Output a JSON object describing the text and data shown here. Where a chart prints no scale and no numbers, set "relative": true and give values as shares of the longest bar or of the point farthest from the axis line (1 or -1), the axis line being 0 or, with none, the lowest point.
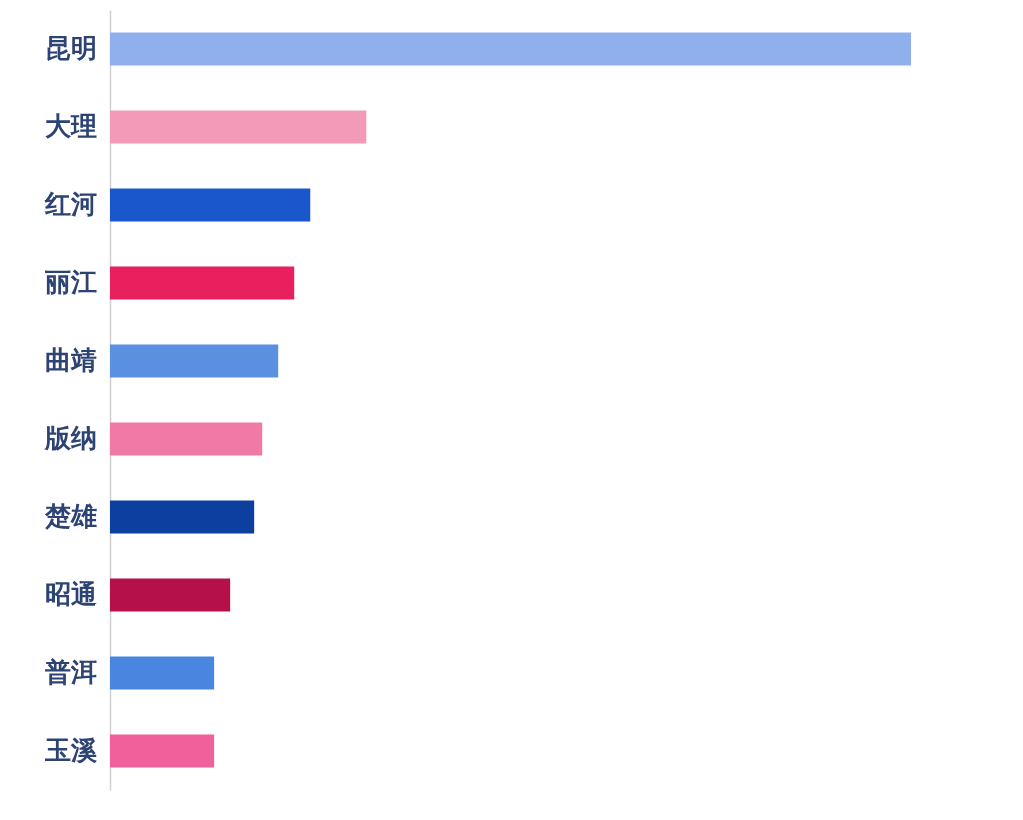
{
  "chart_data": {
    "type": "bar",
    "orientation": "horizontal",
    "relative": true,
    "categories": [
      "昆明",
      "大理",
      "红河",
      "丽江",
      "曲靖",
      "版纳",
      "楚雄",
      "昭通",
      "普洱",
      "玉溪"
    ],
    "values": [
      1,
      0.32,
      0.25,
      0.23,
      0.21,
      0.19,
      0.18,
      0.15,
      0.13,
      0.13
    ],
    "colors": [
      "#8fb0ec",
      "#f29ab8",
      "#1a56cc",
      "#e8215e",
      "#5b8fe0",
      "#f07aa5",
      "#0d3fa0",
      "#b5104a",
      "#4a86e0",
      "#f0609a"
    ]
  }
}
